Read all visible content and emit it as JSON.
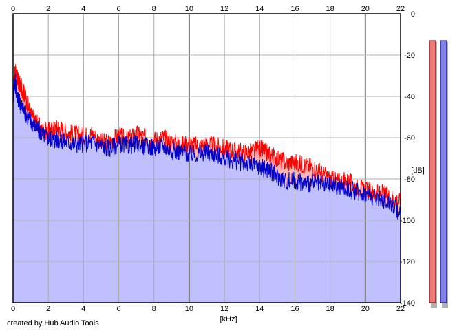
{
  "chart_data": {
    "type": "area",
    "xlabel": "[kHz]",
    "ylabel": "[dB]",
    "xlim": [
      0,
      22
    ],
    "ylim": [
      -140,
      0
    ],
    "x_ticks": [
      0,
      2,
      4,
      6,
      8,
      10,
      12,
      14,
      16,
      18,
      20,
      22
    ],
    "y_ticks": [
      0,
      -20,
      -40,
      -60,
      -80,
      -100,
      -120,
      -140
    ],
    "grid": true,
    "series": [
      {
        "color": "#ff0000",
        "fill": "#ffb4b4",
        "x": [
          0,
          0.1,
          0.2,
          0.3,
          0.5,
          0.7,
          1,
          1.3,
          1.6,
          2,
          2.3,
          2.6,
          3,
          3.5,
          4,
          4.5,
          5,
          5.5,
          6,
          6.5,
          7,
          7.5,
          8,
          8.5,
          9,
          9.5,
          10,
          10.5,
          11,
          11.5,
          12,
          12.5,
          13,
          13.5,
          14,
          14.3,
          14.6,
          15,
          15.5,
          16,
          16.5,
          17,
          17.5,
          18,
          18.5,
          19,
          19.5,
          20,
          20.5,
          21,
          21.5,
          22
        ],
        "values": [
          -40,
          -28,
          -30,
          -33,
          -36,
          -40,
          -49,
          -52,
          -56,
          -57,
          -56,
          -55,
          -57,
          -58,
          -59,
          -58,
          -62,
          -62,
          -59,
          -61,
          -58,
          -60,
          -61,
          -60,
          -62,
          -63,
          -63,
          -64,
          -63,
          -64,
          -65,
          -66,
          -67,
          -67,
          -65,
          -67,
          -68,
          -70,
          -72,
          -72,
          -73,
          -74,
          -77,
          -80,
          -81,
          -81,
          -84,
          -85,
          -87,
          -87,
          -89,
          -91
        ]
      },
      {
        "color": "#0000c8",
        "fill": "#c0c0ff",
        "x": [
          0,
          0.1,
          0.2,
          0.3,
          0.5,
          0.7,
          1,
          1.3,
          1.6,
          2,
          2.3,
          2.6,
          3,
          3.5,
          4,
          4.5,
          5,
          5.5,
          6,
          6.5,
          7,
          7.5,
          8,
          8.5,
          9,
          9.5,
          10,
          10.5,
          11,
          11.5,
          12,
          12.5,
          13,
          13.5,
          14,
          14.3,
          14.6,
          15,
          15.5,
          16,
          16.5,
          17,
          17.5,
          18,
          18.5,
          19,
          19.5,
          20,
          20.5,
          21,
          21.5,
          22
        ],
        "values": [
          -40,
          -32,
          -38,
          -42,
          -45,
          -48,
          -52,
          -55,
          -58,
          -60,
          -61,
          -61,
          -62,
          -63,
          -63,
          -62,
          -64,
          -65,
          -63,
          -64,
          -63,
          -64,
          -65,
          -64,
          -66,
          -67,
          -68,
          -68,
          -67,
          -68,
          -70,
          -71,
          -72,
          -73,
          -74,
          -75,
          -76,
          -79,
          -81,
          -81,
          -82,
          -82,
          -83,
          -83,
          -84,
          -85,
          -86,
          -87,
          -89,
          -90,
          -92,
          -97
        ]
      }
    ],
    "level_meters": [
      {
        "value": -13,
        "fill": "#f07878",
        "border": "#600000"
      },
      {
        "value": -13,
        "fill": "#8080f0",
        "border": "#000060"
      }
    ]
  },
  "credit": "created by Hub Audio Tools"
}
